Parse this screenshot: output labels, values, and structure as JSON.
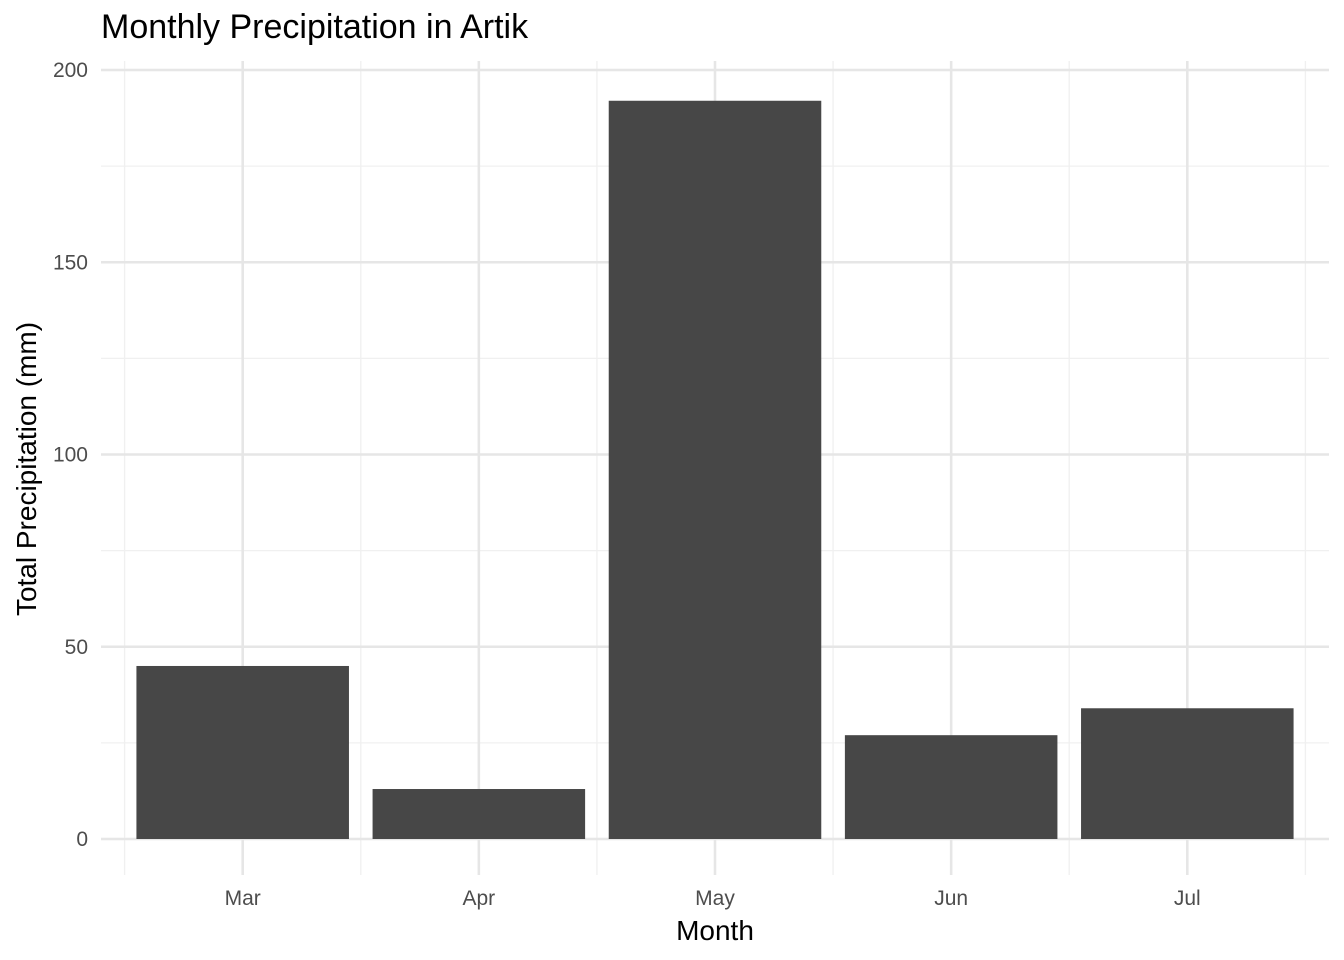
{
  "chart_data": {
    "type": "bar",
    "title": "Monthly Precipitation in Artik",
    "xlabel": "Month",
    "ylabel": "Total Precipitation (mm)",
    "categories": [
      "Mar",
      "Apr",
      "May",
      "Jun",
      "Jul"
    ],
    "values": [
      45,
      13,
      192,
      27,
      34
    ],
    "ylim": [
      0,
      200
    ],
    "yticks": [
      "0",
      "50",
      "100",
      "150",
      "200"
    ],
    "grid": true,
    "legend": "none",
    "colors": {
      "bar": "#474747",
      "grid_major": "#e6e6e6",
      "grid_minor": "#f0f0f0",
      "tick_text": "#4d4d4d"
    }
  }
}
